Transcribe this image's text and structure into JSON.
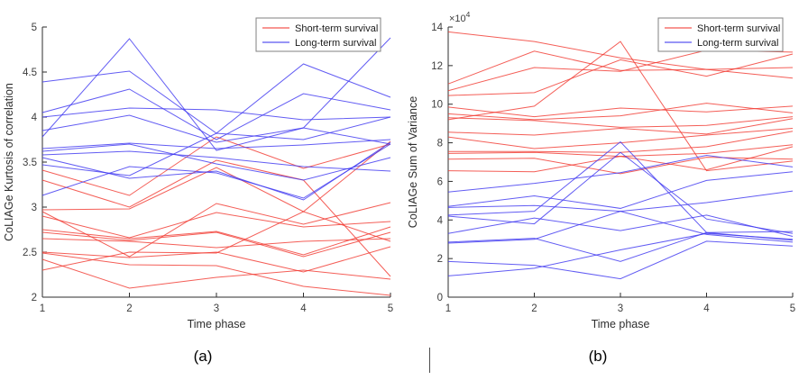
{
  "figure": {
    "captions": [
      {
        "label": "(a)"
      },
      {
        "label": "(b)"
      }
    ]
  },
  "colors": {
    "short_term": "#f23a32",
    "long_term": "#4038f0",
    "axis": "#2e2e2e",
    "tick_label": "#3d3d3d",
    "legend_border": "#808080",
    "legend_text": "#1a1a1a"
  },
  "chart_data": [
    {
      "type": "line",
      "title": "",
      "xlabel": "Time phase",
      "ylabel": "CoLIAGe Kurtosis of correlation",
      "x": [
        1,
        2,
        3,
        4,
        5
      ],
      "xlim": [
        1,
        5
      ],
      "ylim": [
        2,
        5
      ],
      "xticks": [
        1,
        2,
        3,
        4,
        5
      ],
      "yticks": [
        2,
        2.5,
        3,
        3.5,
        4,
        4.5,
        5
      ],
      "grid": false,
      "legend": {
        "position": "top-right",
        "entries": [
          {
            "label": "Short-term survival",
            "group": "short_term"
          },
          {
            "label": "Long-term survival",
            "group": "long_term"
          }
        ]
      },
      "series": [
        {
          "group": "short_term",
          "values": [
            3.41,
            3.13,
            3.78,
            3.43,
            3.7
          ]
        },
        {
          "group": "short_term",
          "values": [
            3.3,
            3.0,
            3.52,
            3.3,
            2.23
          ]
        },
        {
          "group": "short_term",
          "values": [
            2.97,
            2.98,
            3.44,
            2.95,
            3.73
          ]
        },
        {
          "group": "short_term",
          "values": [
            2.95,
            2.45,
            3.04,
            2.81,
            3.05
          ]
        },
        {
          "group": "short_term",
          "values": [
            2.9,
            2.66,
            2.94,
            2.78,
            2.84
          ]
        },
        {
          "group": "short_term",
          "values": [
            2.75,
            2.65,
            2.73,
            2.47,
            2.78
          ]
        },
        {
          "group": "short_term",
          "values": [
            2.72,
            2.63,
            2.72,
            2.45,
            2.72
          ]
        },
        {
          "group": "short_term",
          "values": [
            2.65,
            2.62,
            2.55,
            2.62,
            2.65
          ]
        },
        {
          "group": "short_term",
          "values": [
            2.5,
            2.44,
            2.5,
            2.28,
            2.56
          ]
        },
        {
          "group": "short_term",
          "values": [
            2.49,
            2.36,
            2.35,
            2.12,
            2.02
          ]
        },
        {
          "group": "short_term",
          "values": [
            2.42,
            2.1,
            2.22,
            2.3,
            2.2
          ]
        },
        {
          "group": "short_term",
          "values": [
            2.3,
            2.5,
            2.49,
            2.95,
            2.62
          ]
        },
        {
          "group": "long_term",
          "values": [
            4.39,
            4.51,
            3.82,
            4.59,
            4.22
          ]
        },
        {
          "group": "long_term",
          "values": [
            3.78,
            4.87,
            3.63,
            3.88,
            4.88
          ]
        },
        {
          "group": "long_term",
          "values": [
            4.05,
            4.31,
            3.75,
            4.26,
            4.08
          ]
        },
        {
          "group": "long_term",
          "values": [
            4.0,
            4.1,
            4.08,
            3.97,
            4.0
          ]
        },
        {
          "group": "long_term",
          "values": [
            3.85,
            4.02,
            3.72,
            3.88,
            3.7
          ]
        },
        {
          "group": "long_term",
          "values": [
            3.65,
            3.71,
            3.65,
            3.69,
            3.75
          ]
        },
        {
          "group": "long_term",
          "values": [
            3.55,
            3.32,
            3.4,
            3.08,
            3.72
          ]
        },
        {
          "group": "long_term",
          "values": [
            3.13,
            3.45,
            3.38,
            3.1,
            3.7
          ]
        },
        {
          "group": "long_term",
          "values": [
            3.58,
            3.62,
            3.55,
            3.45,
            3.4
          ]
        },
        {
          "group": "long_term",
          "values": [
            3.47,
            3.35,
            3.82,
            3.75,
            4.0
          ]
        },
        {
          "group": "long_term",
          "values": [
            3.62,
            3.7,
            3.48,
            3.3,
            3.55
          ]
        }
      ]
    },
    {
      "type": "line",
      "title": "",
      "xlabel": "Time phase",
      "ylabel": "CoLIAGe Sum of Variance",
      "y_scale_label": {
        "base": "×10",
        "exp": "4"
      },
      "x": [
        1,
        2,
        3,
        4,
        5
      ],
      "xlim": [
        1,
        5
      ],
      "ylim": [
        0,
        14
      ],
      "xticks": [
        1,
        2,
        3,
        4,
        5
      ],
      "yticks": [
        0,
        2,
        4,
        6,
        8,
        10,
        12,
        14
      ],
      "grid": false,
      "values_unit": "1e4",
      "legend": {
        "position": "top-right",
        "entries": [
          {
            "label": "Short-term survival",
            "group": "short_term"
          },
          {
            "label": "Long-term survival",
            "group": "long_term"
          }
        ]
      },
      "series": [
        {
          "group": "short_term",
          "values": [
            13.75,
            13.25,
            12.4,
            11.8,
            11.35
          ]
        },
        {
          "group": "short_term",
          "values": [
            9.2,
            9.9,
            13.25,
            6.55,
            7.05
          ]
        },
        {
          "group": "short_term",
          "values": [
            10.45,
            10.6,
            12.3,
            11.45,
            12.6
          ]
        },
        {
          "group": "short_term",
          "values": [
            11.05,
            12.75,
            11.75,
            11.8,
            11.9
          ]
        },
        {
          "group": "short_term",
          "values": [
            10.7,
            11.9,
            11.7,
            12.8,
            12.7
          ]
        },
        {
          "group": "short_term",
          "values": [
            9.85,
            9.35,
            9.8,
            9.6,
            9.9
          ]
        },
        {
          "group": "short_term",
          "values": [
            9.5,
            9.2,
            9.4,
            10.05,
            9.55
          ]
        },
        {
          "group": "short_term",
          "values": [
            9.3,
            9.15,
            8.8,
            8.9,
            9.35
          ]
        },
        {
          "group": "short_term",
          "values": [
            8.55,
            8.4,
            8.75,
            8.45,
            9.25
          ]
        },
        {
          "group": "short_term",
          "values": [
            8.3,
            7.7,
            8.0,
            8.4,
            8.75
          ]
        },
        {
          "group": "short_term",
          "values": [
            7.55,
            7.55,
            7.5,
            7.8,
            8.6
          ]
        },
        {
          "group": "short_term",
          "values": [
            7.45,
            7.5,
            7.3,
            7.45,
            7.9
          ]
        },
        {
          "group": "short_term",
          "values": [
            7.15,
            7.2,
            6.4,
            7.25,
            7.15
          ]
        },
        {
          "group": "short_term",
          "values": [
            6.55,
            6.5,
            7.3,
            6.6,
            7.8
          ]
        },
        {
          "group": "long_term",
          "values": [
            5.45,
            5.9,
            6.45,
            7.35,
            6.75
          ]
        },
        {
          "group": "long_term",
          "values": [
            4.7,
            5.25,
            4.6,
            6.05,
            6.5
          ]
        },
        {
          "group": "long_term",
          "values": [
            4.65,
            4.75,
            4.45,
            4.9,
            5.5
          ]
        },
        {
          "group": "long_term",
          "values": [
            4.25,
            4.45,
            8.05,
            3.35,
            3.4
          ]
        },
        {
          "group": "long_term",
          "values": [
            4.2,
            3.8,
            7.5,
            4.05,
            3.3
          ]
        },
        {
          "group": "long_term",
          "values": [
            3.3,
            4.1,
            3.45,
            4.25,
            3.15
          ]
        },
        {
          "group": "long_term",
          "values": [
            2.85,
            3.05,
            1.85,
            3.35,
            2.95
          ]
        },
        {
          "group": "long_term",
          "values": [
            2.8,
            3.0,
            4.45,
            3.25,
            2.85
          ]
        },
        {
          "group": "long_term",
          "values": [
            1.85,
            1.65,
            0.95,
            2.9,
            2.65
          ]
        },
        {
          "group": "long_term",
          "values": [
            1.1,
            1.5,
            2.45,
            3.3,
            3.0
          ]
        }
      ]
    }
  ]
}
